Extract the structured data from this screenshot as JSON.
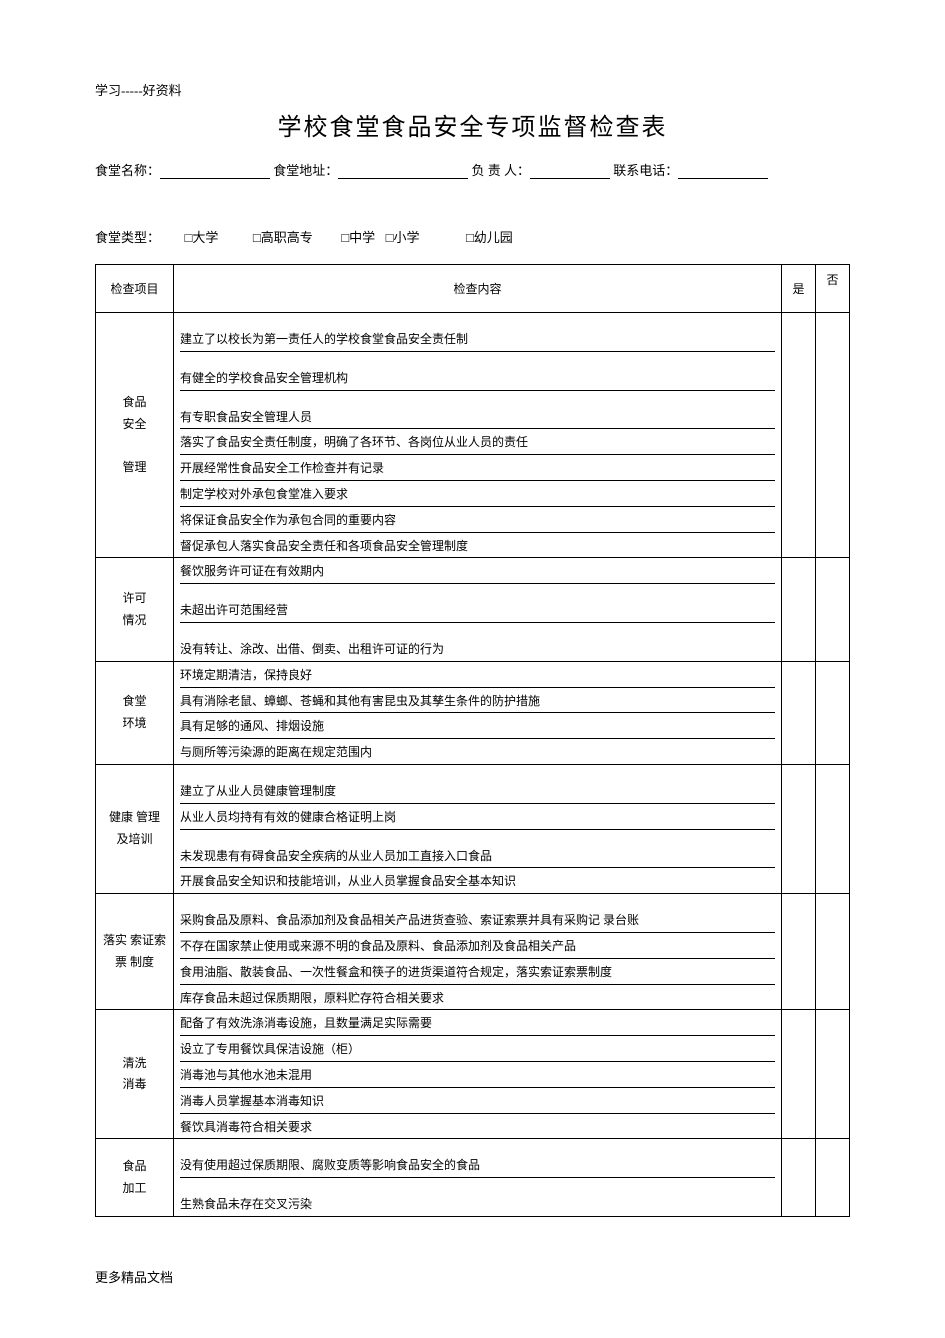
{
  "doc": {
    "header_note": "学习-----好资料",
    "title": "学校食堂食品安全专项监督检查表",
    "footer_note": "更多精品文档"
  },
  "form": {
    "field1_label": "食堂名称：",
    "field2_label": "食堂地址：",
    "field3_label": "负 责 人：",
    "field4_label": "联系电话：",
    "blank_widths": {
      "w1": 110,
      "w2": 130,
      "w3": 80,
      "w4": 90
    }
  },
  "type": {
    "label": "食堂类型：",
    "opt1": "□大学",
    "opt2": "□高职高专",
    "opt3": "□中学",
    "opt4": "□小学",
    "opt5": "□幼儿园"
  },
  "table": {
    "header_category": "检查项目",
    "header_content": "检查内容",
    "header_yes": "是",
    "header_no": "否",
    "sections": [
      {
        "category": "食品\n安全\n\n管理",
        "items": [
          {
            "text": "建立了以校长为第一责任人的学校食堂食品安全责任制",
            "tall": true
          },
          {
            "text": "有健全的学校食品安全管理机构",
            "tall": true
          },
          {
            "text": "有专职食品安全管理人员",
            "tall": true
          },
          {
            "text": "落实了食品安全责任制度，明确了各环节、各岗位从业人员的责任"
          },
          {
            "text": "开展经常性食品安全工作检查并有记录"
          },
          {
            "text": "制定学校对外承包食堂准入要求"
          },
          {
            "text": "将保证食品安全作为承包合同的重要内容"
          },
          {
            "text": "督促承包人落实食品安全责任和各项食品安全管理制度"
          }
        ]
      },
      {
        "category": "许可\n情况",
        "items": [
          {
            "text": "餐饮服务许可证在有效期内"
          },
          {
            "text": "未超出许可范围经营",
            "tall": true
          },
          {
            "text": "没有转让、涂改、出借、倒卖、出租许可证的行为",
            "tall": true
          }
        ]
      },
      {
        "category": "食堂\n环境",
        "items": [
          {
            "text": "环境定期清洁，保持良好"
          },
          {
            "text": "具有消除老鼠、蟑螂、苍蝇和其他有害昆虫及其孳生条件的防护措施"
          },
          {
            "text": "具有足够的通风、排烟设施"
          },
          {
            "text": "与厕所等污染源的距离在规定范围内"
          }
        ]
      },
      {
        "category": "健康 管理 及培训",
        "items": [
          {
            "text": "建立了从业人员健康管理制度",
            "tall": true
          },
          {
            "text": "从业人员均持有有效的健康合格证明上岗"
          },
          {
            "text": "未发现患有有碍食品安全疾病的从业人员加工直接入口食品",
            "tall": true
          },
          {
            "text": "开展食品安全知识和技能培训，从业人员掌握食品安全基本知识"
          }
        ]
      },
      {
        "category": "落实 索证索票 制度",
        "items": [
          {
            "text": "采购食品及原料、食品添加剂及食品相关产品进货查验、索证索票并具有采购记 录台账",
            "tall": true
          },
          {
            "text": "不存在国家禁止使用或来源不明的食品及原料、食品添加剂及食品相关产品"
          },
          {
            "text": "食用油脂、散装食品、一次性餐盒和筷子的进货渠道符合规定，落实索证索票制度"
          },
          {
            "text": "库存食品未超过保质期限，原料贮存符合相关要求"
          }
        ]
      },
      {
        "category": "清洗\n消毒",
        "items": [
          {
            "text": "配备了有效洗涤消毒设施，且数量满足实际需要"
          },
          {
            "text": "设立了专用餐饮具保洁设施（柜）"
          },
          {
            "text": "消毒池与其他水池未混用"
          },
          {
            "text": "消毒人员掌握基本消毒知识"
          },
          {
            "text": "餐饮具消毒符合相关要求"
          }
        ]
      },
      {
        "category": "食品\n加工",
        "items": [
          {
            "text": "没有使用超过保质期限、腐败变质等影响食品安全的食品",
            "tall": true
          },
          {
            "text": "生熟食品未存在交叉污染",
            "tall": true
          }
        ]
      }
    ]
  },
  "style": {
    "page_bg": "#ffffff",
    "text_color": "#000000",
    "border_color": "#000000",
    "title_fontsize": 24,
    "body_fontsize": 13,
    "table_fontsize": 12
  }
}
